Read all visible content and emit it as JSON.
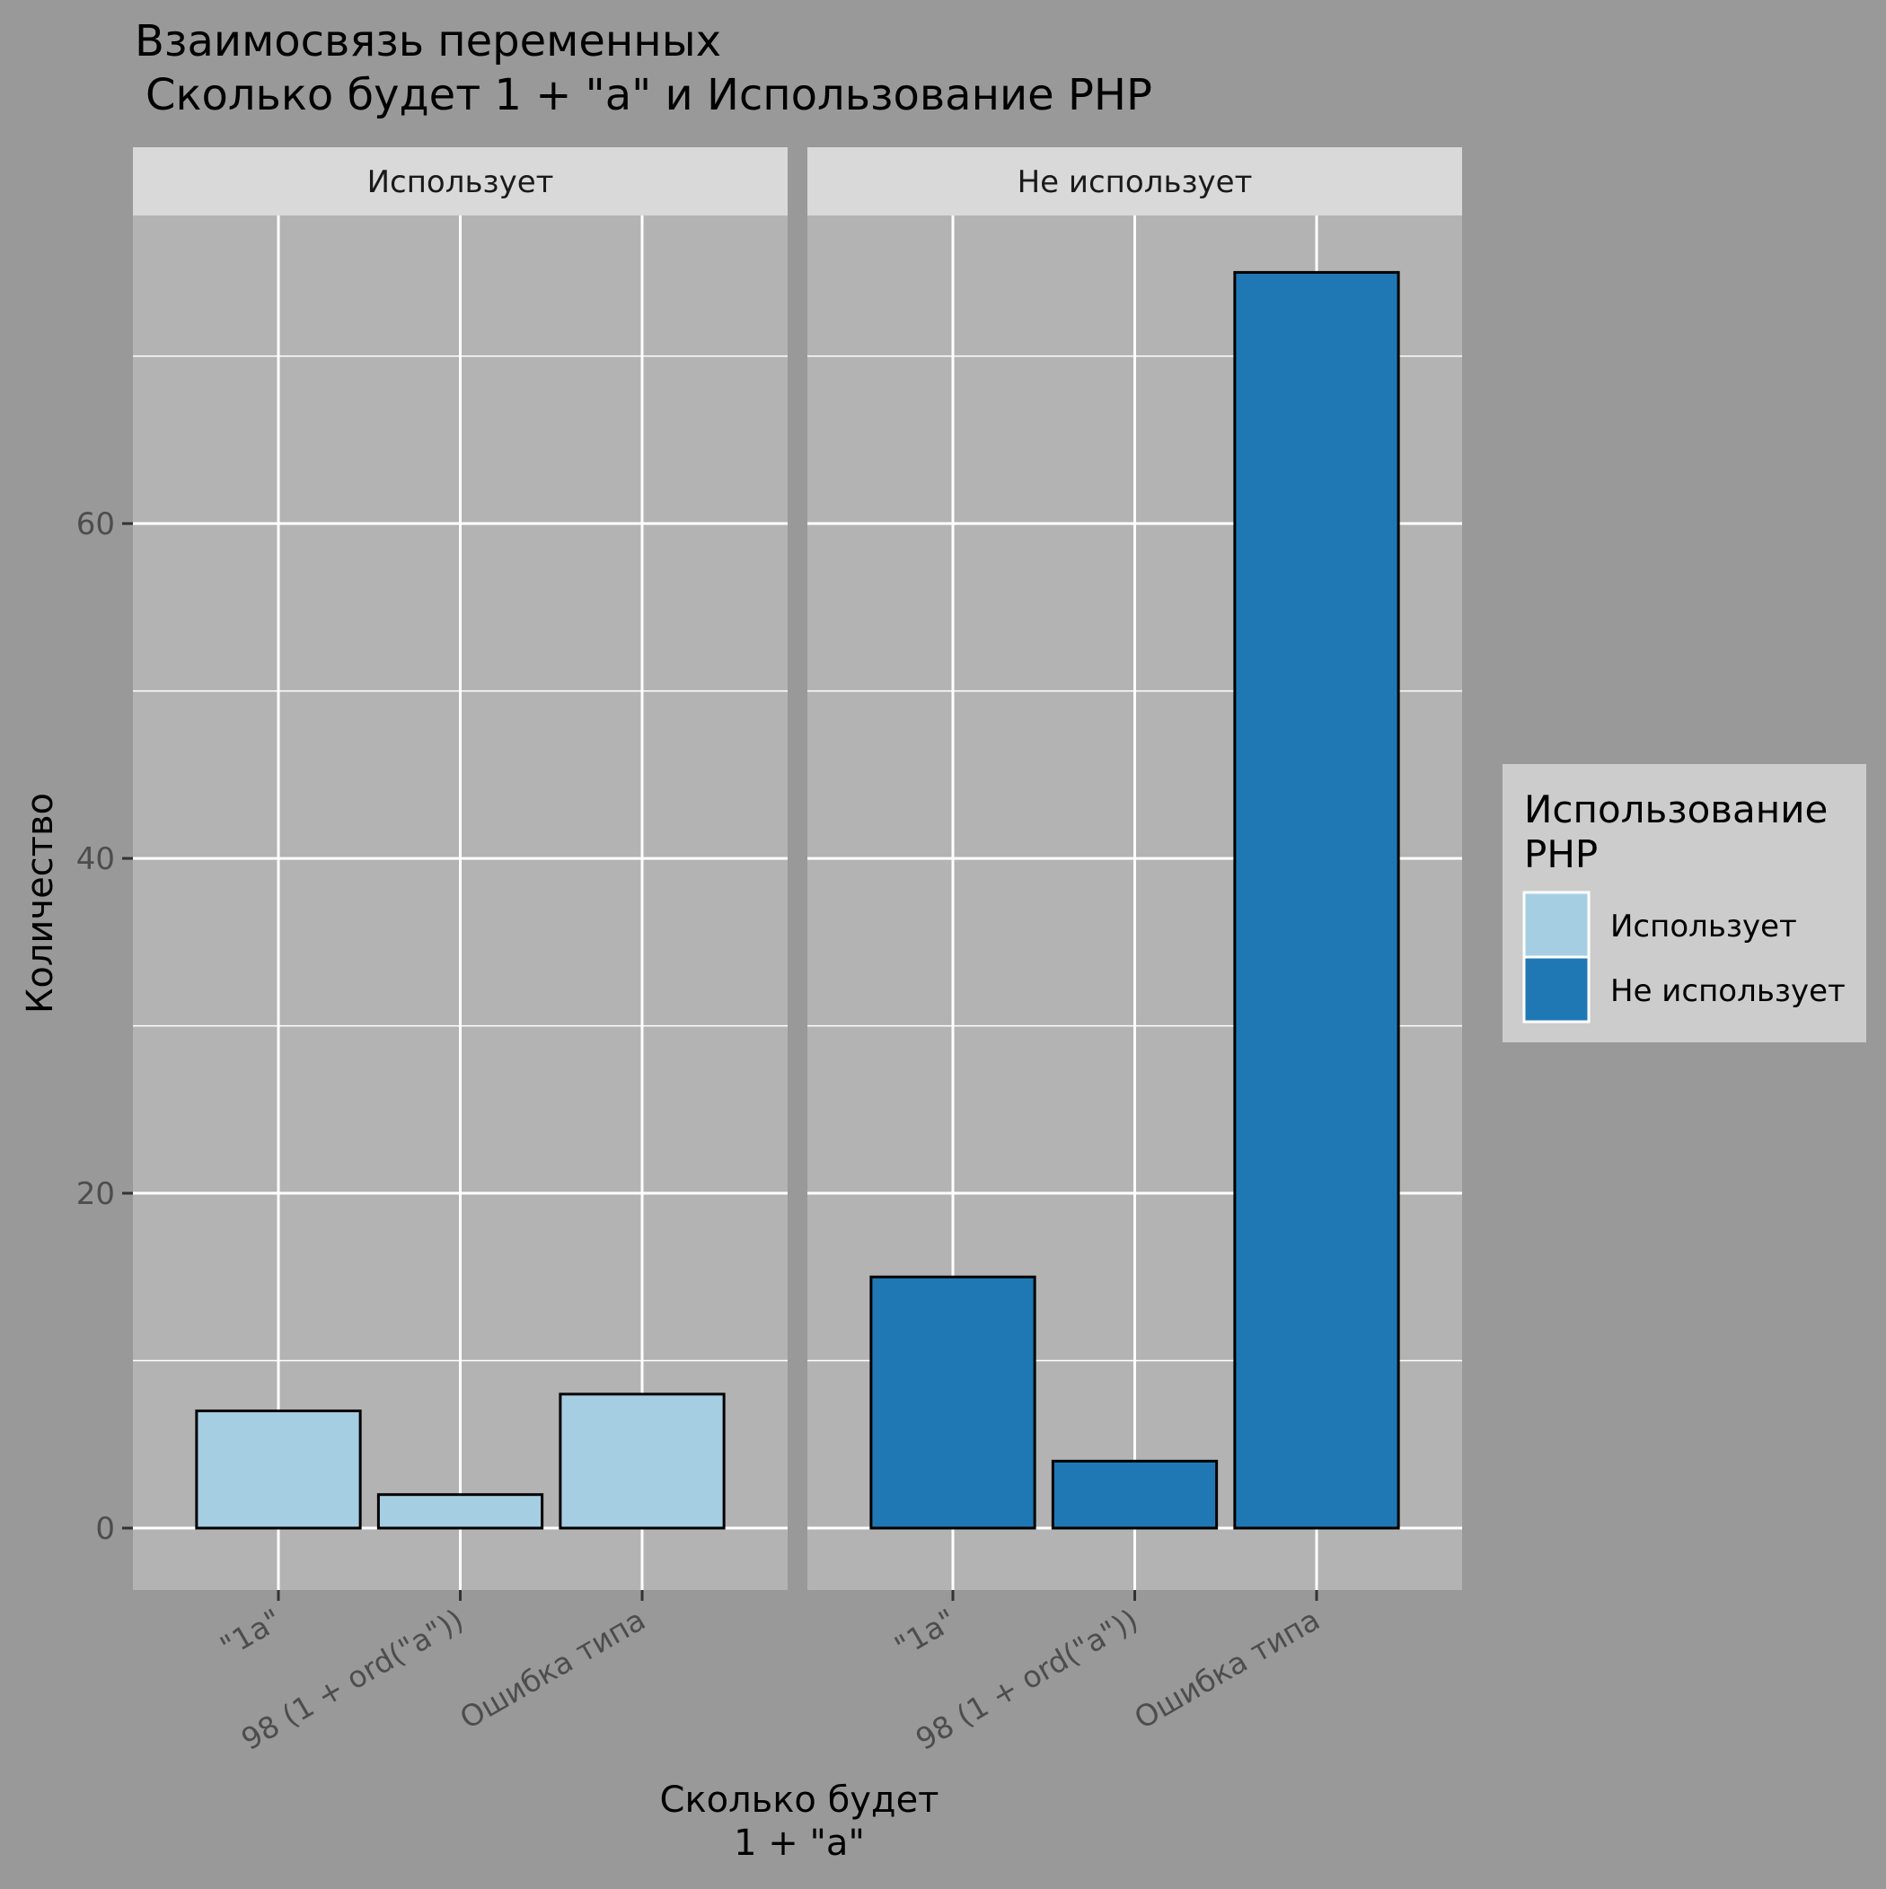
{
  "chart_data": {
    "type": "bar",
    "title_line1": "Взаимосвязь переменных",
    "title_line2": "Сколько будет 1 + \"a\" и Использование PHP",
    "xlabel_line1": "Сколько будет",
    "xlabel_line2": "1 + \"a\"",
    "ylabel": "Количество",
    "ylim": [
      -3.7,
      78.4
    ],
    "yticks": [
      0,
      20,
      40,
      60
    ],
    "grid": true,
    "categories": [
      "\"1a\"",
      "98 (1 + ord(\"a\"))",
      "Ошибка типа"
    ],
    "facets": [
      {
        "name": "Использует",
        "color": "#A6CEE3",
        "values": [
          7,
          2,
          8
        ]
      },
      {
        "name": "Не использует",
        "color": "#1F78B4",
        "values": [
          15,
          4,
          75
        ]
      }
    ],
    "legend": {
      "title_line1": "Использование",
      "title_line2": "PHP",
      "position": "right",
      "items": [
        {
          "label": "Использует",
          "color": "#A6CEE3"
        },
        {
          "label": "Не использует",
          "color": "#1F78B4"
        }
      ]
    }
  }
}
